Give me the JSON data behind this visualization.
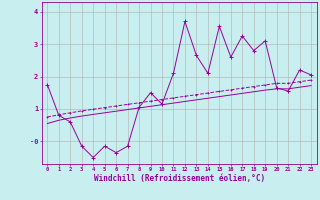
{
  "xlabel": "Windchill (Refroidissement éolien,°C)",
  "x_values": [
    0,
    1,
    2,
    3,
    4,
    5,
    6,
    7,
    8,
    9,
    10,
    11,
    12,
    13,
    14,
    15,
    16,
    17,
    18,
    19,
    20,
    21,
    22,
    23
  ],
  "line1_y": [
    1.75,
    0.8,
    0.6,
    -0.15,
    -0.5,
    -0.15,
    -0.35,
    -0.15,
    1.05,
    1.5,
    1.15,
    2.1,
    3.7,
    2.65,
    2.1,
    3.55,
    2.6,
    3.25,
    2.8,
    3.1,
    1.65,
    1.55,
    2.2,
    2.05
  ],
  "line2_y": [
    0.55,
    0.65,
    0.72,
    0.78,
    0.83,
    0.88,
    0.93,
    0.98,
    1.03,
    1.08,
    1.13,
    1.18,
    1.23,
    1.28,
    1.33,
    1.38,
    1.43,
    1.48,
    1.53,
    1.58,
    1.62,
    1.62,
    1.67,
    1.72
  ],
  "line3_y": [
    0.75,
    0.82,
    0.88,
    0.94,
    0.99,
    1.04,
    1.09,
    1.14,
    1.19,
    1.24,
    1.29,
    1.34,
    1.39,
    1.44,
    1.49,
    1.54,
    1.59,
    1.64,
    1.69,
    1.74,
    1.79,
    1.79,
    1.84,
    1.89
  ],
  "line_color": "#990099",
  "bg_color": "#c8eef0",
  "grid_color": "#b0b0b0",
  "ylim": [
    -0.7,
    4.3
  ],
  "yticks": [
    4,
    3,
    2,
    1,
    0
  ],
  "ytick_labels": [
    "4",
    "3",
    "2",
    "1",
    "-0"
  ],
  "xlim": [
    -0.5,
    23.5
  ]
}
